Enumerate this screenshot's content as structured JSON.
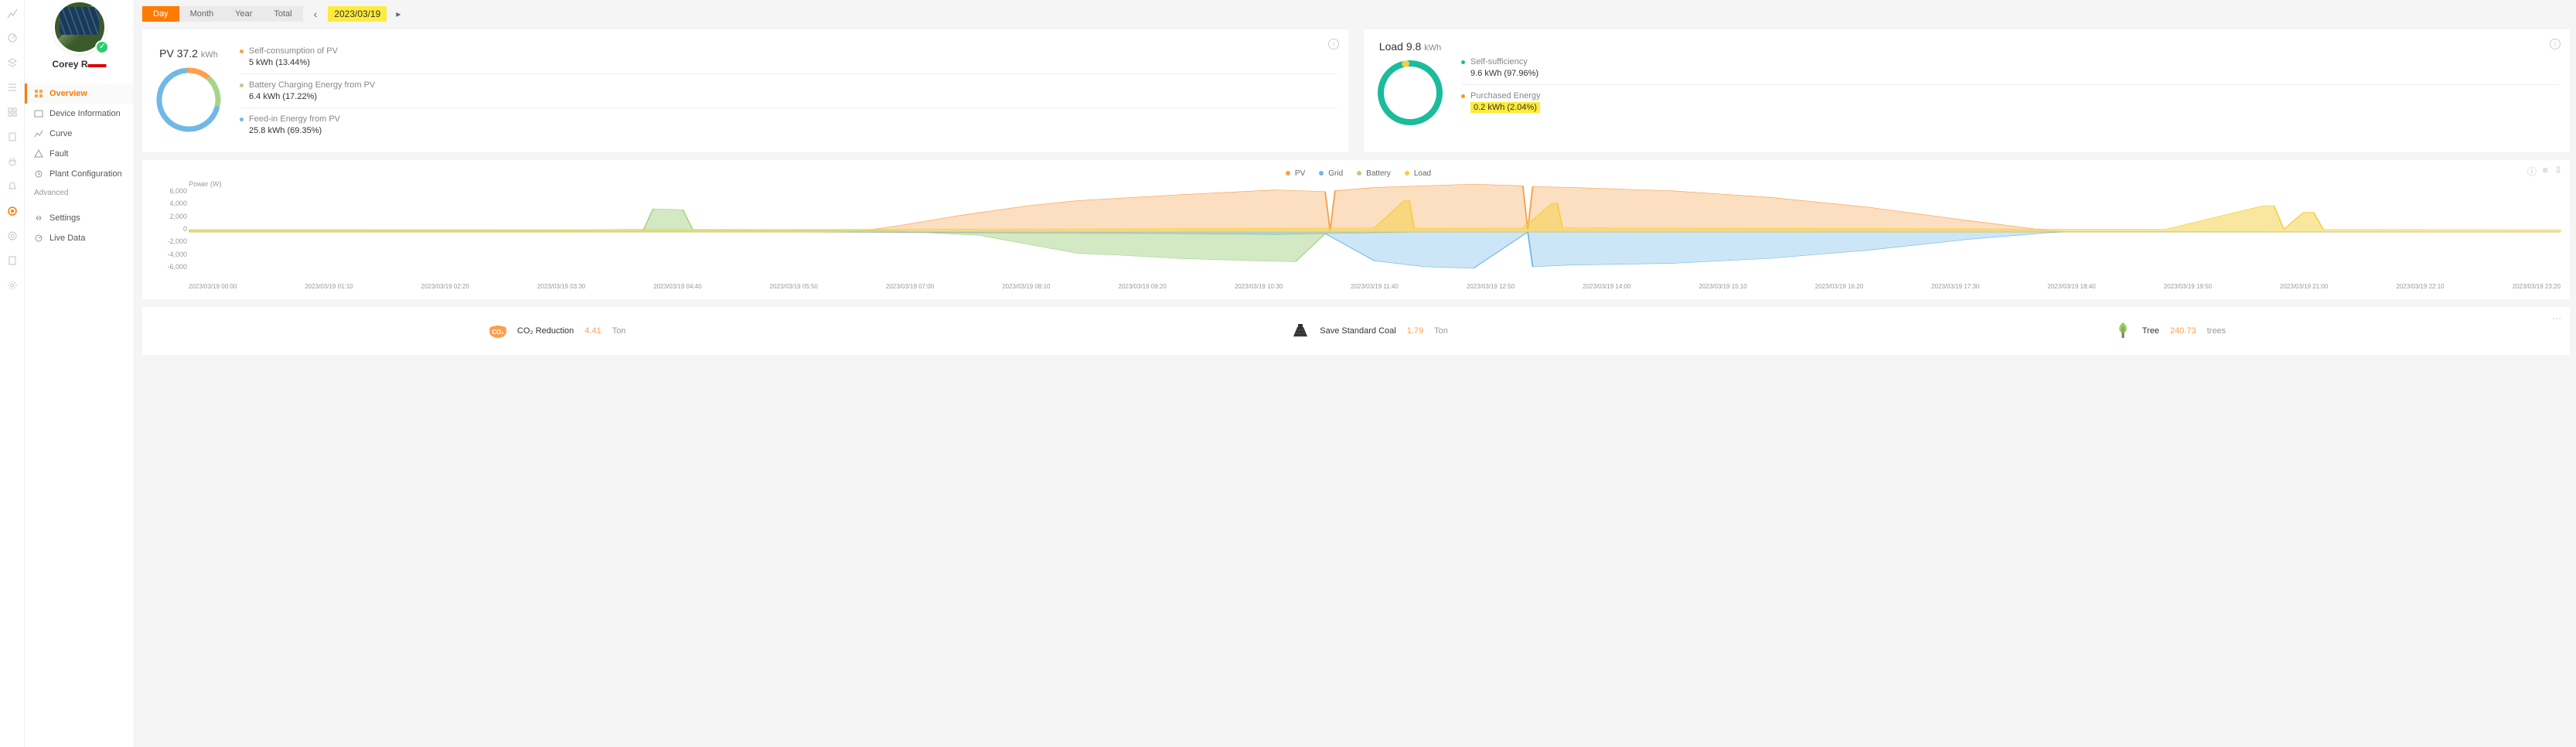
{
  "user": {
    "name_prefix": "Corey R",
    "redacted": "▬▬"
  },
  "nav": {
    "items": [
      {
        "label": "Overview",
        "active": true
      },
      {
        "label": "Device Information"
      },
      {
        "label": "Curve"
      },
      {
        "label": "Fault"
      },
      {
        "label": "Plant Configuration"
      }
    ],
    "section_label": "Advanced",
    "advanced": [
      {
        "label": "Settings"
      },
      {
        "label": "Live Data"
      }
    ]
  },
  "time_selector": {
    "tabs": [
      "Day",
      "Month",
      "Year",
      "Total"
    ],
    "active_index": 0,
    "date": "2023/03/19"
  },
  "pv_card": {
    "title": "PV",
    "value": "37.2",
    "unit": "kWh",
    "donut": {
      "segments": [
        {
          "color": "#ff9e4a",
          "fraction": 0.1344
        },
        {
          "color": "#a8d48a",
          "fraction": 0.1722
        },
        {
          "color": "#6fb8e8",
          "fraction": 0.6935
        }
      ],
      "stroke_width": 7,
      "radius": 38
    },
    "stats": [
      {
        "color_class": "c-orange",
        "label": "Self-consumption of PV",
        "val": "5 kWh (13.44%)"
      },
      {
        "color_class": "c-green",
        "label": "Battery Charging Energy from PV",
        "val": "6.4 kWh (17.22%)"
      },
      {
        "color_class": "c-blue",
        "label": "Feed-in Energy from PV",
        "val": "25.8 kWh (69.35%)"
      }
    ]
  },
  "load_card": {
    "title": "Load",
    "value": "9.8",
    "unit": "kWh",
    "donut": {
      "segments": [
        {
          "color": "#1abc9c",
          "fraction": 0.9796
        },
        {
          "color": "#f4d03f",
          "fraction": 0.0204
        }
      ],
      "stroke_width": 8,
      "radius": 38
    },
    "stats": [
      {
        "color_class": "c-teal",
        "label": "Self-sufficiency",
        "val": "9.6 kWh (97.96%)"
      },
      {
        "color_class": "c-yellow",
        "label": "Purchased Energy",
        "val": "0.2 kWh (2.04%)",
        "highlight": true
      }
    ]
  },
  "power_chart": {
    "y_axis_label": "Power (W)",
    "legend": [
      {
        "name": "PV",
        "color": "#f5a04a"
      },
      {
        "name": "Grid",
        "color": "#6fb8e8"
      },
      {
        "name": "Battery",
        "color": "#a8d48a"
      },
      {
        "name": "Load",
        "color": "#f4d03f"
      }
    ],
    "y_ticks": [
      "6,000",
      "4,000",
      "2,000",
      "0",
      "-2,000",
      "-4,000",
      "-6,000"
    ],
    "y_min": -6000,
    "y_max": 6000,
    "x_ticks": [
      "2023/03/19 00:00",
      "2023/03/19 01:10",
      "2023/03/19 02:20",
      "2023/03/19 03:30",
      "2023/03/19 04:40",
      "2023/03/19 05:50",
      "2023/03/19 07:00",
      "2023/03/19 08:10",
      "2023/03/19 09:20",
      "2023/03/19 10:30",
      "2023/03/19 11:40",
      "2023/03/19 12:50",
      "2023/03/19 14:00",
      "2023/03/19 15:10",
      "2023/03/19 16:20",
      "2023/03/19 17:30",
      "2023/03/19 18:40",
      "2023/03/19 19:50",
      "2023/03/19 21:00",
      "2023/03/19 22:10",
      "2023/03/19 23:20"
    ],
    "series": {
      "pv": {
        "color": "#f5a04a",
        "fill_opacity": 0.35,
        "points": [
          [
            0,
            0
          ],
          [
            6.5,
            0
          ],
          [
            6.8,
            100
          ],
          [
            7.2,
            800
          ],
          [
            7.8,
            2000
          ],
          [
            8.5,
            3200
          ],
          [
            9,
            3800
          ],
          [
            10,
            4500
          ],
          [
            11,
            5100
          ],
          [
            11.5,
            4900
          ],
          [
            11.55,
            200
          ],
          [
            11.6,
            5000
          ],
          [
            12,
            5400
          ],
          [
            13,
            5800
          ],
          [
            13.5,
            5600
          ],
          [
            13.55,
            300
          ],
          [
            13.6,
            5500
          ],
          [
            14,
            5400
          ],
          [
            15,
            5000
          ],
          [
            16,
            4200
          ],
          [
            17,
            3000
          ],
          [
            18,
            1400
          ],
          [
            18.8,
            200
          ],
          [
            19,
            50
          ],
          [
            24,
            0
          ]
        ]
      },
      "grid": {
        "color": "#6fb8e8",
        "fill_opacity": 0.35,
        "points": [
          [
            0,
            0
          ],
          [
            6,
            0
          ],
          [
            8,
            -100
          ],
          [
            10,
            -200
          ],
          [
            11,
            -300
          ],
          [
            11.5,
            -200
          ],
          [
            12,
            -3500
          ],
          [
            12.5,
            -4200
          ],
          [
            13,
            -4400
          ],
          [
            13.55,
            0
          ],
          [
            13.6,
            -4200
          ],
          [
            14,
            -4000
          ],
          [
            15,
            -3800
          ],
          [
            16,
            -3200
          ],
          [
            17,
            -2200
          ],
          [
            18,
            -900
          ],
          [
            18.8,
            -100
          ],
          [
            19,
            0
          ],
          [
            24,
            0
          ]
        ]
      },
      "battery": {
        "color": "#a8d48a",
        "fill_opacity": 0.5,
        "points": [
          [
            0,
            200
          ],
          [
            4.6,
            200
          ],
          [
            4.7,
            2800
          ],
          [
            5.0,
            2700
          ],
          [
            5.1,
            300
          ],
          [
            6.5,
            250
          ],
          [
            7,
            200
          ],
          [
            8,
            -400
          ],
          [
            8.5,
            -1500
          ],
          [
            9,
            -2600
          ],
          [
            9.4,
            -2800
          ],
          [
            10,
            -3200
          ],
          [
            10.8,
            -3500
          ],
          [
            11.2,
            -3600
          ],
          [
            11.5,
            -200
          ],
          [
            12,
            -100
          ],
          [
            12.5,
            0
          ],
          [
            13,
            0
          ],
          [
            24,
            0
          ]
        ]
      },
      "load": {
        "color": "#f4d03f",
        "fill_opacity": 0.5,
        "points": [
          [
            0,
            300
          ],
          [
            4,
            280
          ],
          [
            4.7,
            350
          ],
          [
            5,
            320
          ],
          [
            6,
            300
          ],
          [
            8,
            350
          ],
          [
            10,
            400
          ],
          [
            12,
            500
          ],
          [
            12.3,
            3800
          ],
          [
            12.35,
            3800
          ],
          [
            12.4,
            450
          ],
          [
            13.5,
            480
          ],
          [
            13.8,
            3500
          ],
          [
            13.85,
            3500
          ],
          [
            13.9,
            500
          ],
          [
            16,
            450
          ],
          [
            18,
            380
          ],
          [
            20,
            320
          ],
          [
            21,
            3200
          ],
          [
            21.1,
            3200
          ],
          [
            21.2,
            320
          ],
          [
            21.4,
            2400
          ],
          [
            21.5,
            2400
          ],
          [
            21.6,
            300
          ],
          [
            24,
            280
          ]
        ]
      }
    }
  },
  "env": {
    "items": [
      {
        "icon": "co2",
        "label": "CO₂ Reduction",
        "value": "4.41",
        "unit": "Ton",
        "icon_color": "#ff9e4a"
      },
      {
        "icon": "coal",
        "label": "Save Standard Coal",
        "value": "1.79",
        "unit": "Ton",
        "icon_color": "#555"
      },
      {
        "icon": "tree",
        "label": "Tree",
        "value": "240.73",
        "unit": "trees",
        "icon_color": "#7cb342"
      }
    ]
  }
}
